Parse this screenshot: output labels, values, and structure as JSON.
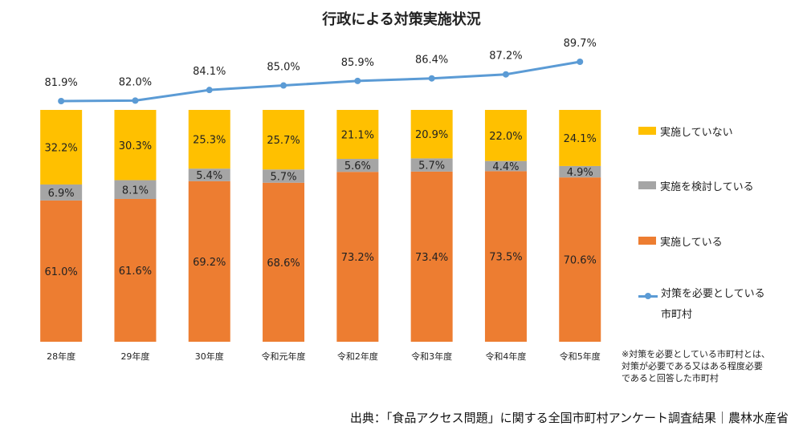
{
  "chart_data": {
    "type": "bar",
    "title": "行政による対策実施状況",
    "categories": [
      "28年度",
      "29年度",
      "30年度",
      "令和元年度",
      "令和2年度",
      "令和3年度",
      "令和4年度",
      "令和5年度"
    ],
    "series": [
      {
        "name": "実施している",
        "color": "#ED7D31",
        "values": [
          61.0,
          61.6,
          69.2,
          68.6,
          73.2,
          73.4,
          73.5,
          70.6
        ]
      },
      {
        "name": "実施を検討している",
        "color": "#A5A5A5",
        "values": [
          6.9,
          8.1,
          5.4,
          5.7,
          5.6,
          5.7,
          4.4,
          4.9
        ]
      },
      {
        "name": "実施していない",
        "color": "#FFC000",
        "values": [
          32.2,
          30.3,
          25.3,
          25.7,
          21.1,
          20.9,
          22.0,
          24.1
        ]
      }
    ],
    "line_series": {
      "name": "対策を必要としている市町村",
      "color": "#5B9BD5",
      "values": [
        81.9,
        82.0,
        84.1,
        85.0,
        85.9,
        86.4,
        87.2,
        89.7
      ]
    },
    "stacked": true,
    "percent_suffix": "%",
    "ylim": [
      0,
      100
    ],
    "grid": false,
    "legend_position": "right"
  },
  "legend": {
    "not_implemented": "実施していない",
    "considering": "実施を検討している",
    "implemented": "実施している",
    "line_line1": "対策を必要としている",
    "line_line2": "市町村"
  },
  "note": {
    "line1": "※対策を必要としている市町村とは、",
    "line2": "対策が必要である又はある程度必要",
    "line3": "であると回答した市町村"
  },
  "source": "出典：「食品アクセス問題」に関する全国市町村アンケート調査結果｜農林水産省"
}
